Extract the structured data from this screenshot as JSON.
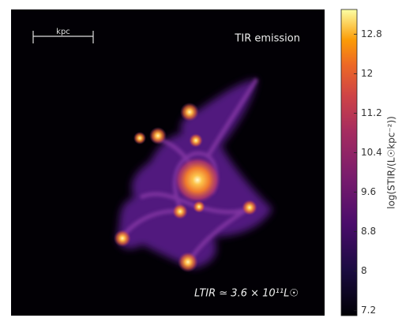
{
  "panel": {
    "scale_bar_label": "kpc",
    "title": "TIR emission",
    "luminosity_label": "LTIR ≃ 3.6 × 10¹¹L☉"
  },
  "colorbar": {
    "label": "log(STIR/(L☉kpc⁻²))",
    "lim": [
      7.1,
      13.3
    ],
    "ticks": [
      7.2,
      8.0,
      8.8,
      9.6,
      10.4,
      11.2,
      12.0,
      12.8
    ]
  }
}
